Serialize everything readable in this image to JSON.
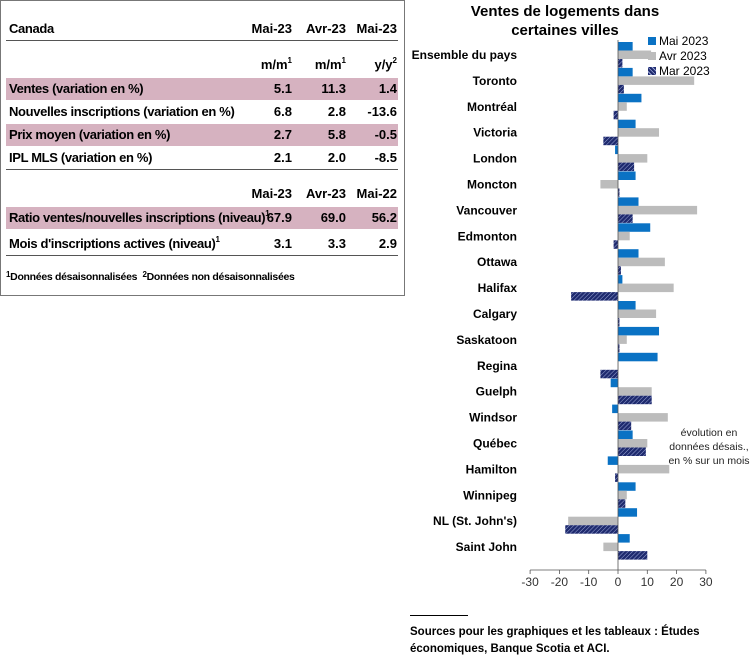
{
  "table": {
    "header": {
      "label": "Canada",
      "col1": "Mai-23",
      "col2": "Avr-23",
      "col3": "Mai-23"
    },
    "units": {
      "col1": "m/m",
      "col1_sup": "1",
      "col2": "m/m",
      "col2_sup": "1",
      "col3": "y/y",
      "col3_sup": "2"
    },
    "rows": [
      {
        "label": "Ventes (variation en %)",
        "col1": "5.1",
        "col2": "11.3",
        "col3": "1.4"
      },
      {
        "label": "Nouvelles inscriptions (variation en %)",
        "col1": "6.8",
        "col2": "2.8",
        "col3": "-13.6"
      },
      {
        "label": "Prix moyen (variation en %)",
        "col1": "2.7",
        "col2": "5.8",
        "col3": "-0.5"
      },
      {
        "label": "IPL MLS (variation en %)",
        "col1": "2.1",
        "col2": "2.0",
        "col3": "-8.5"
      }
    ],
    "header2": {
      "col1": "Mai-23",
      "col2": "Avr-23",
      "col3": "Mai-22"
    },
    "rows2": [
      {
        "label": "Ratio ventes/nouvelles inscriptions (niveau)",
        "sup": "1",
        "col1": "67.9",
        "col2": "69.0",
        "col3": "56.2"
      },
      {
        "label": "Mois d'inscriptions actives (niveau)",
        "sup": "1",
        "col1": "3.1",
        "col2": "3.3",
        "col3": "2.9"
      }
    ],
    "footnote": {
      "sup1": "1",
      "text1": "Données désaisonnalisées",
      "sup2": "2",
      "text2": "Données non désaisonnalisées"
    }
  },
  "chart_data": {
    "type": "bar",
    "orientation": "horizontal",
    "title": "Ventes de logements dans certaines villes",
    "categories": [
      "Ensemble du pays",
      "Toronto",
      "Montréal",
      "Victoria",
      "London",
      "Moncton",
      "Vancouver",
      "Edmonton",
      "Ottawa",
      "Halifax",
      "Calgary",
      "Saskatoon",
      "Regina",
      "Guelph",
      "Windsor",
      "Québec",
      "Hamilton",
      "Winnipeg",
      "NL (St. John's)",
      "Saint John"
    ],
    "series": [
      {
        "name": "Mai 2023",
        "color": "#0a72c4",
        "values": [
          5,
          5,
          8,
          6,
          -1,
          6,
          7,
          11,
          7,
          1.5,
          6,
          14,
          13.5,
          -2.5,
          -2,
          5,
          -3.5,
          6,
          6.5,
          4
        ]
      },
      {
        "name": "Avr 2023",
        "color": "#bcbcbc",
        "values": [
          11.3,
          26,
          3,
          14,
          10,
          -6,
          27,
          4,
          16,
          19,
          13,
          3,
          0,
          11.5,
          17,
          10,
          17.5,
          3,
          -17,
          -5
        ]
      },
      {
        "name": "Mar 2023",
        "color": "#1e2a6e",
        "pattern": "hatched",
        "values": [
          1.5,
          2,
          -1.5,
          -5,
          5.5,
          0.5,
          5,
          -1.5,
          1,
          -16,
          0.5,
          0.5,
          -6,
          11.5,
          4.5,
          9.5,
          -1,
          2.5,
          -18,
          10
        ]
      }
    ],
    "xlim": [
      -30,
      30
    ],
    "xticks": [
      -30,
      -20,
      -10,
      0,
      10,
      20,
      30
    ],
    "annotation": "évolution en données désais., en % sur un mois",
    "legend_position": "top-right",
    "grid": false
  },
  "sources": "Sources pour les graphiques et les tableaux : Études économiques, Banque Scotia et ACI."
}
